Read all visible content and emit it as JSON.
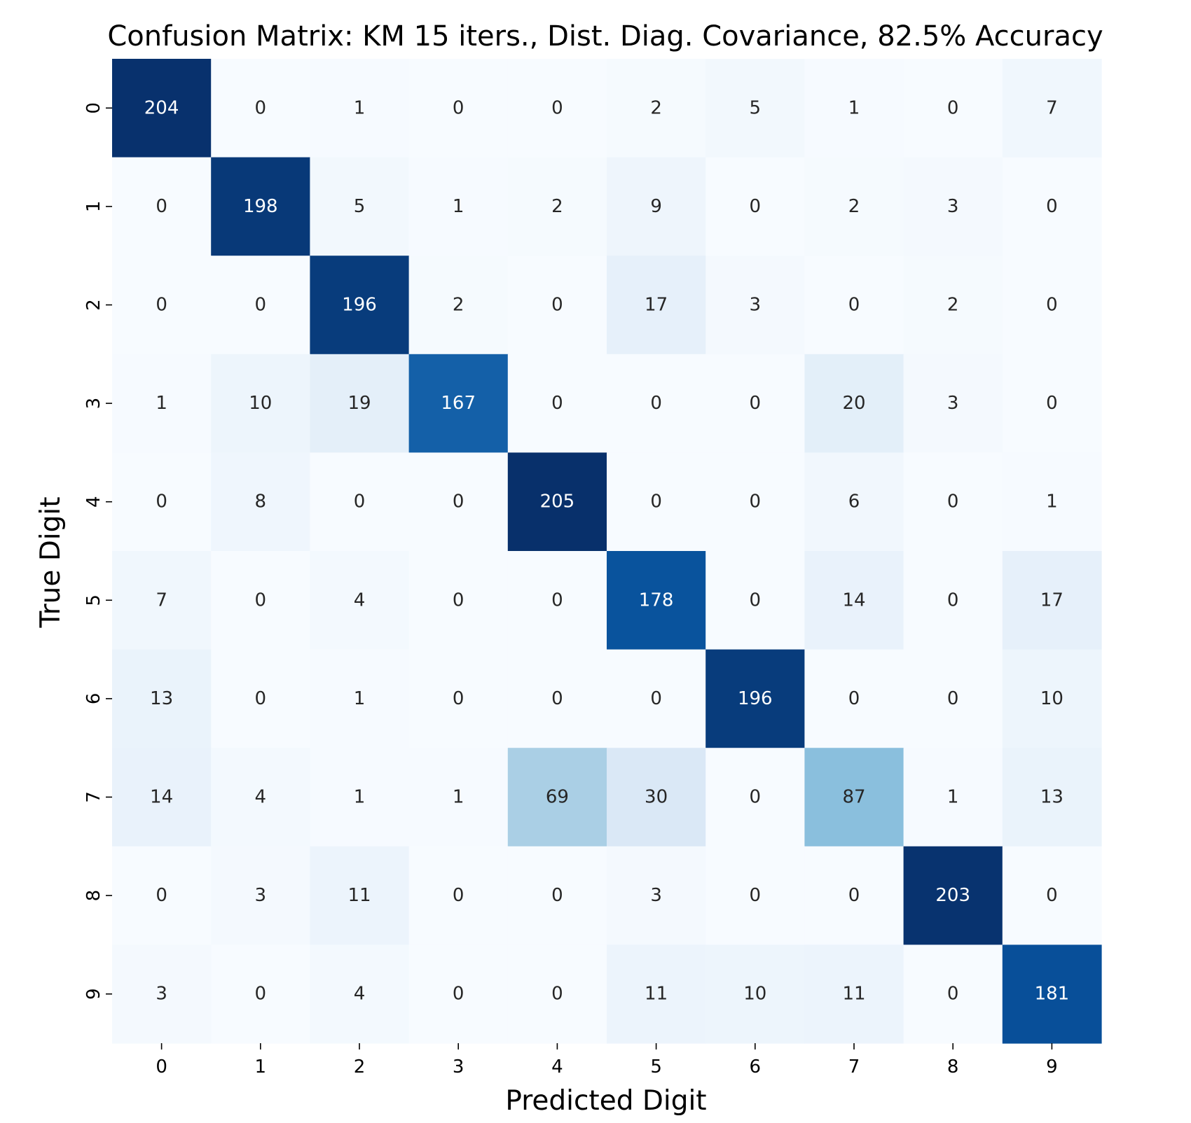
{
  "chart_data": {
    "type": "heatmap",
    "title": "Confusion Matrix: KM 15 iters., Dist. Diag. Covariance, 82.5% Accuracy",
    "xlabel": "Predicted Digit",
    "ylabel": "True Digit",
    "x_categories": [
      "0",
      "1",
      "2",
      "3",
      "4",
      "5",
      "6",
      "7",
      "8",
      "9"
    ],
    "y_categories": [
      "0",
      "1",
      "2",
      "3",
      "4",
      "5",
      "6",
      "7",
      "8",
      "9"
    ],
    "values": [
      [
        204,
        0,
        1,
        0,
        0,
        2,
        5,
        1,
        0,
        7
      ],
      [
        0,
        198,
        5,
        1,
        2,
        9,
        0,
        2,
        3,
        0
      ],
      [
        0,
        0,
        196,
        2,
        0,
        17,
        3,
        0,
        2,
        0
      ],
      [
        1,
        10,
        19,
        167,
        0,
        0,
        0,
        20,
        3,
        0
      ],
      [
        0,
        8,
        0,
        0,
        205,
        0,
        0,
        6,
        0,
        1
      ],
      [
        7,
        0,
        4,
        0,
        0,
        178,
        0,
        14,
        0,
        17
      ],
      [
        13,
        0,
        1,
        0,
        0,
        0,
        196,
        0,
        0,
        10
      ],
      [
        14,
        4,
        1,
        1,
        69,
        30,
        0,
        87,
        1,
        13
      ],
      [
        0,
        3,
        11,
        0,
        0,
        3,
        0,
        0,
        203,
        0
      ],
      [
        3,
        0,
        4,
        0,
        0,
        11,
        10,
        11,
        0,
        181
      ]
    ],
    "colormap": "Blues",
    "value_range": [
      0,
      205
    ],
    "colorbar": false,
    "grid": false
  }
}
